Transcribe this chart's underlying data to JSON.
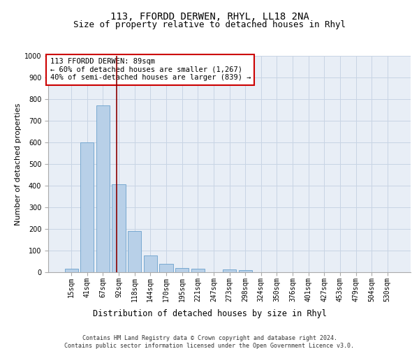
{
  "title": "113, FFORDD DERWEN, RHYL, LL18 2NA",
  "subtitle": "Size of property relative to detached houses in Rhyl",
  "xlabel": "Distribution of detached houses by size in Rhyl",
  "ylabel": "Number of detached properties",
  "categories": [
    "15sqm",
    "41sqm",
    "67sqm",
    "92sqm",
    "118sqm",
    "144sqm",
    "170sqm",
    "195sqm",
    "221sqm",
    "247sqm",
    "273sqm",
    "298sqm",
    "324sqm",
    "350sqm",
    "376sqm",
    "401sqm",
    "427sqm",
    "453sqm",
    "479sqm",
    "504sqm",
    "530sqm"
  ],
  "values": [
    15,
    600,
    770,
    405,
    190,
    78,
    38,
    18,
    15,
    0,
    13,
    10,
    0,
    0,
    0,
    0,
    0,
    0,
    0,
    0,
    0
  ],
  "bar_color": "#b8d0e8",
  "bar_edge_color": "#6aa0cc",
  "grid_color": "#c8d4e4",
  "background_color": "#e8eef6",
  "vline_color": "#8b0000",
  "annotation_text": "113 FFORDD DERWEN: 89sqm\n← 60% of detached houses are smaller (1,267)\n40% of semi-detached houses are larger (839) →",
  "annotation_box_color": "#ffffff",
  "annotation_border_color": "#cc0000",
  "ylim": [
    0,
    1000
  ],
  "yticks": [
    0,
    100,
    200,
    300,
    400,
    500,
    600,
    700,
    800,
    900,
    1000
  ],
  "footer_line1": "Contains HM Land Registry data © Crown copyright and database right 2024.",
  "footer_line2": "Contains public sector information licensed under the Open Government Licence v3.0.",
  "title_fontsize": 10,
  "subtitle_fontsize": 9,
  "tick_fontsize": 7,
  "ylabel_fontsize": 8,
  "xlabel_fontsize": 8.5,
  "annotation_fontsize": 7.5,
  "footer_fontsize": 6
}
